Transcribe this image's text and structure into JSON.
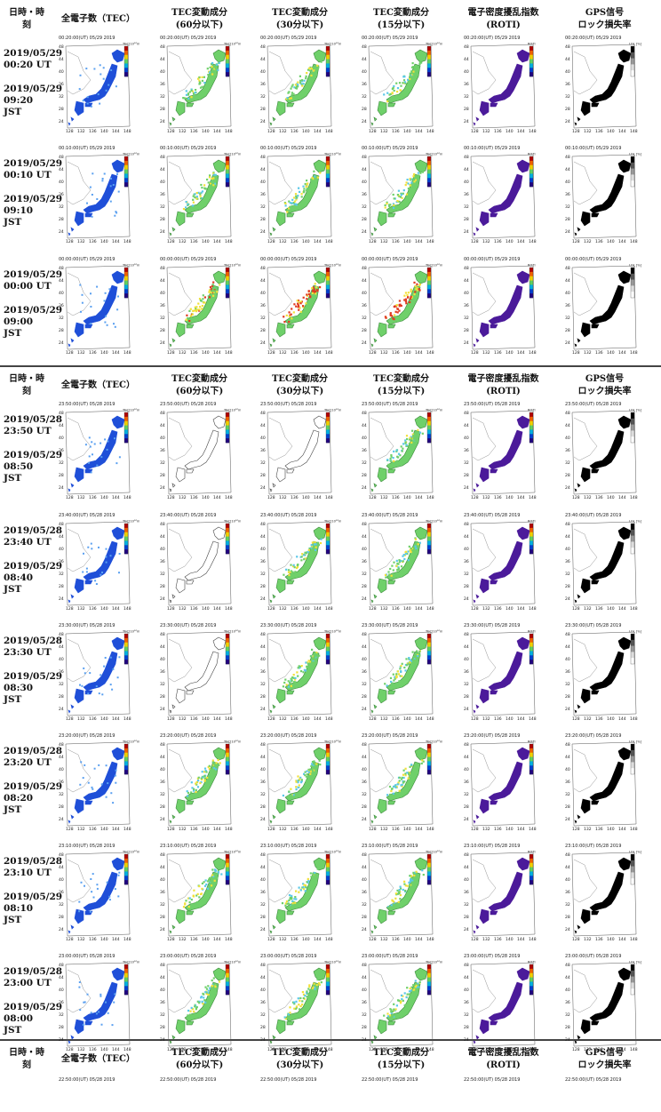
{
  "header": {
    "datetime_col": [
      "日時・時",
      "刻"
    ],
    "columns": [
      {
        "line1": "全電子数（TEC）",
        "line2": ""
      },
      {
        "line1": "TEC変動成分",
        "line2": "(60分以下)"
      },
      {
        "line1": "TEC変動成分",
        "line2": "(30分以下)"
      },
      {
        "line1": "TEC変動成分",
        "line2": "(15分以下)"
      },
      {
        "line1": "電子密度擾乱指数",
        "line2": "(ROTI)"
      },
      {
        "line1": "GPS信号",
        "line2": "ロック損失率"
      }
    ]
  },
  "panel_axis": {
    "lat_ticks": [
      "48",
      "44",
      "40",
      "36",
      "32",
      "28",
      "24"
    ],
    "lon_ticks": [
      "128",
      "132",
      "136",
      "140",
      "144",
      "148"
    ],
    "colorbar_units": [
      "TEC[10¹⁶m²]",
      "TEC[10¹⁶m²]",
      "TEC[10¹⁶m²]",
      "TEC[10¹⁶m²]",
      "ROTI",
      "LOL [%]"
    ]
  },
  "rows": [
    {
      "ut_date": "2019/05/29",
      "ut_time": "00:20 UT",
      "jst_date": "2019/05/29",
      "jst_time": "09:20",
      "jst": "JST",
      "stamp": "00:20:00(UT) 05/29 2019"
    },
    {
      "ut_date": "2019/05/29",
      "ut_time": "00:10 UT",
      "jst_date": "2019/05/29",
      "jst_time": "09:10",
      "jst": "JST",
      "stamp": "00:10:00(UT) 05/29 2019"
    },
    {
      "ut_date": "2019/05/29",
      "ut_time": "00:00 UT",
      "jst_date": "2019/05/29",
      "jst_time": "09:00",
      "jst": "JST",
      "stamp": "00:00:00(UT) 05/29 2019"
    },
    {
      "ut_date": "2019/05/28",
      "ut_time": "23:50 UT",
      "jst_date": "2019/05/29",
      "jst_time": "08:50",
      "jst": "JST",
      "stamp": "23:50:00(UT) 05/28 2019"
    },
    {
      "ut_date": "2019/05/28",
      "ut_time": "23:40 UT",
      "jst_date": "2019/05/29",
      "jst_time": "08:40",
      "jst": "JST",
      "stamp": "23:40:00(UT) 05/28 2019"
    },
    {
      "ut_date": "2019/05/28",
      "ut_time": "23:30 UT",
      "jst_date": "2019/05/29",
      "jst_time": "08:30",
      "jst": "JST",
      "stamp": "23:30:00(UT) 05/28 2019"
    },
    {
      "ut_date": "2019/05/28",
      "ut_time": "23:20 UT",
      "jst_date": "2019/05/29",
      "jst_time": "08:20",
      "jst": "JST",
      "stamp": "23:20:00(UT) 05/28 2019"
    },
    {
      "ut_date": "2019/05/28",
      "ut_time": "23:10 UT",
      "jst_date": "2019/05/29",
      "jst_time": "08:10",
      "jst": "JST",
      "stamp": "23:10:00(UT) 05/28 2019"
    },
    {
      "ut_date": "2019/05/28",
      "ut_time": "23:00 UT",
      "jst_date": "2019/05/29",
      "jst_time": "08:00",
      "jst": "JST",
      "stamp": "23:00:00(UT) 05/28 2019"
    }
  ],
  "partial_row": {
    "stamp": "22:50:00(UT) 05/28 2019"
  },
  "colors": {
    "tec": "#1f4fd8",
    "roti": "#4b1a9a",
    "lol": "#000000",
    "var_green": "#6fd06a",
    "var_yellow": "#f2e13a",
    "var_red": "#e03a20",
    "var_cyan": "#5bc8e8"
  }
}
